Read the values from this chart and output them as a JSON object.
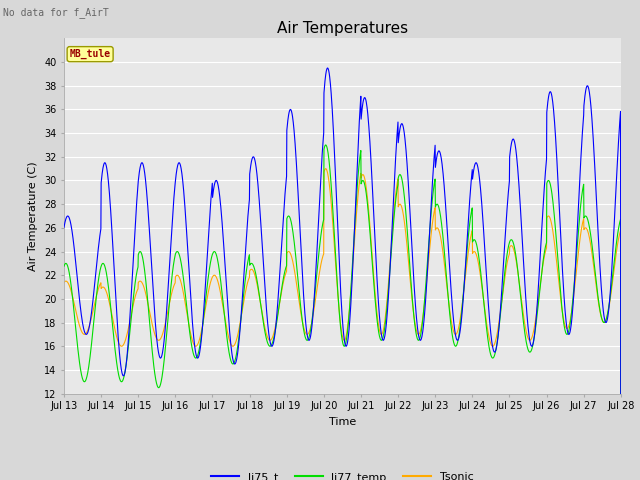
{
  "title": "Air Temperatures",
  "note": "No data for f_AirT",
  "annotation": "MB_tule",
  "xlabel": "Time",
  "ylabel": "Air Temperature (C)",
  "ylim": [
    12,
    42
  ],
  "yticks": [
    12,
    14,
    16,
    18,
    20,
    22,
    24,
    26,
    28,
    30,
    32,
    34,
    36,
    38,
    40
  ],
  "xstart": 13,
  "xend": 28,
  "series_colors": {
    "li75_t": "#0000ff",
    "li77_temp": "#00dd00",
    "Tsonic": "#ffaa00"
  },
  "bg_color": "#d8d8d8",
  "plot_bg": "#e8e8e8",
  "grid_color": "#ffffff",
  "title_fontsize": 11,
  "label_fontsize": 8,
  "tick_fontsize": 7,
  "note_fontsize": 7,
  "daily_min_base": [
    17,
    13.5,
    15,
    15,
    14.5,
    16,
    16.5,
    16,
    16.5,
    16.5,
    16.5,
    15.5,
    16,
    17,
    18
  ],
  "daily_max_blue": [
    27,
    31.5,
    31.5,
    31.5,
    30,
    32,
    36,
    39.5,
    37,
    34.8,
    32.5,
    31.5,
    33.5,
    37.5,
    38
  ],
  "daily_max_green": [
    23,
    23,
    24,
    24,
    24,
    23,
    27,
    33,
    30,
    30.5,
    28,
    25,
    25,
    30,
    27
  ],
  "daily_max_orange": [
    21.5,
    21,
    21.5,
    22,
    22,
    22.5,
    24,
    31,
    30.5,
    28,
    26,
    24,
    24.5,
    27,
    26
  ],
  "daily_min_green": [
    13,
    13,
    12.5,
    15,
    14.5,
    16,
    16.5,
    16,
    16.5,
    16.5,
    16,
    15,
    15.5,
    17,
    18
  ],
  "daily_min_orange": [
    17,
    16,
    16.5,
    16,
    16,
    16.5,
    17,
    16.5,
    17,
    17,
    17,
    16,
    16.5,
    17.5,
    18
  ]
}
